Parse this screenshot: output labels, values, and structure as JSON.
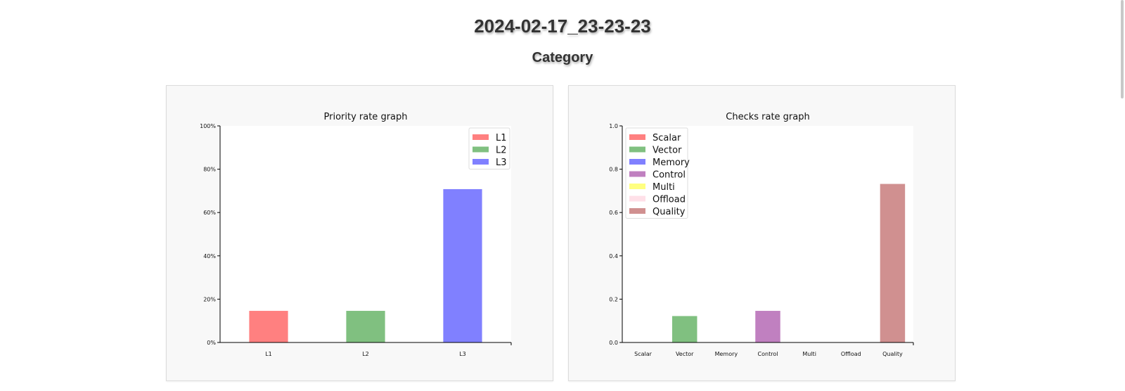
{
  "page": {
    "title": "2024-02-17_23-23-23",
    "section": "Category"
  },
  "chart_data": [
    {
      "type": "bar",
      "title": "Priority rate graph",
      "categories": [
        "L1",
        "L2",
        "L3"
      ],
      "values": [
        0.146,
        0.146,
        0.708
      ],
      "colors": [
        "#ff8080",
        "#80c080",
        "#8080ff"
      ],
      "ylim": [
        0,
        1
      ],
      "yticks": [
        0,
        0.2,
        0.4,
        0.6,
        0.8,
        1.0
      ],
      "ytick_labels": [
        "0%",
        "20%",
        "40%",
        "60%",
        "80%",
        "100%"
      ],
      "legend": [
        "L1",
        "L2",
        "L3"
      ],
      "legend_position": "top-right",
      "grid": false,
      "xlabel": "",
      "ylabel": ""
    },
    {
      "type": "bar",
      "title": "Checks rate graph",
      "categories": [
        "Scalar",
        "Vector",
        "Memory",
        "Control",
        "Multi",
        "Offload",
        "Quality"
      ],
      "values": [
        0,
        0.122,
        0,
        0.146,
        0,
        0,
        0.732
      ],
      "colors": [
        "#ff8080",
        "#80c080",
        "#8080ff",
        "#c080c0",
        "#ffff80",
        "#ffe0e8",
        "#d09090"
      ],
      "ylim": [
        0,
        1
      ],
      "yticks": [
        0,
        0.2,
        0.4,
        0.6,
        0.8,
        1.0
      ],
      "ytick_labels": [
        "0.0",
        "0.2",
        "0.4",
        "0.6",
        "0.8",
        "1.0"
      ],
      "legend": [
        "Scalar",
        "Vector",
        "Memory",
        "Control",
        "Multi",
        "Offload",
        "Quality"
      ],
      "legend_position": "top-left",
      "grid": false,
      "xlabel": "",
      "ylabel": ""
    }
  ]
}
